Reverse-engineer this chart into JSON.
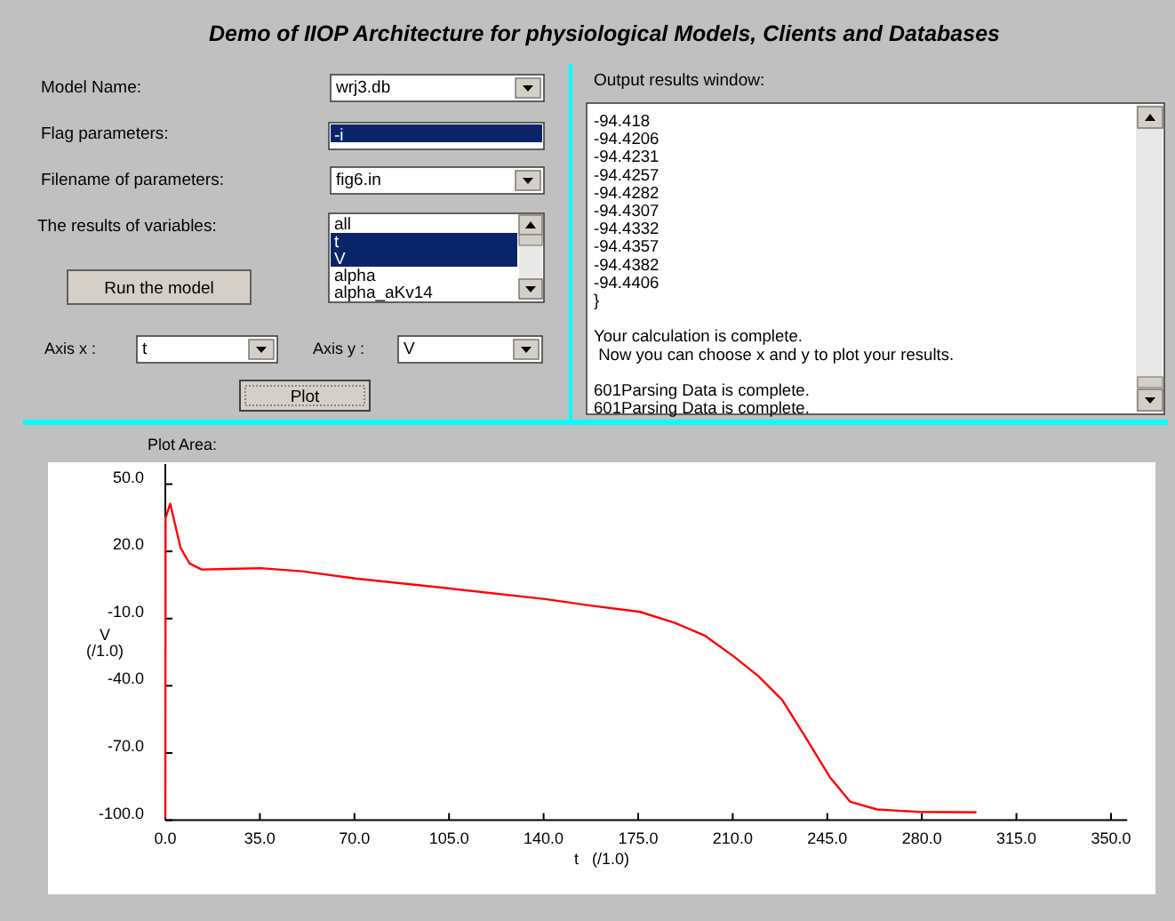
{
  "chart_data": {
    "type": "line",
    "title": "Demo of IIOP Architecture for physiological Models, Clients and Databases",
    "xlabel": "t   (/1.0)",
    "ylabel": "V\n(/1.0)",
    "xlim": [
      0,
      356
    ],
    "ylim": [
      -100,
      59
    ],
    "xticks": [
      {
        "value": 0,
        "label": "0.0"
      },
      {
        "value": 35,
        "label": "35.0"
      },
      {
        "value": 70,
        "label": "70.0"
      },
      {
        "value": 105,
        "label": "105.0"
      },
      {
        "value": 140,
        "label": "140.0"
      },
      {
        "value": 175,
        "label": "175.0"
      },
      {
        "value": 210,
        "label": "210.0"
      },
      {
        "value": 245,
        "label": "245.0"
      },
      {
        "value": 280,
        "label": "280.0"
      },
      {
        "value": 315,
        "label": "315.0"
      },
      {
        "value": 350,
        "label": "350.0"
      }
    ],
    "yticks": [
      {
        "value": 50,
        "label": "50.0"
      },
      {
        "value": 20,
        "label": "20.0"
      },
      {
        "value": -10,
        "label": "-10.0"
      },
      {
        "value": -40,
        "label": "-40.0"
      },
      {
        "value": -70,
        "label": "-70.0"
      },
      {
        "value": -100,
        "label": "-100.0"
      }
    ],
    "grid": false,
    "marker": "none",
    "line_style": "solid",
    "series": [
      {
        "color": "#ff0000",
        "x": [
          0,
          0.1,
          1.8,
          5.7,
          9,
          13.4,
          35.3,
          50.7,
          70.4,
          105.5,
          140.6,
          156,
          175.7,
          188.8,
          199.8,
          210.7,
          219.5,
          228.3,
          235.9,
          245.9,
          253.5,
          263.4,
          278.7,
          300.2
        ],
        "values": [
          -99,
          35,
          41.3,
          21.4,
          14.6,
          11.9,
          12.5,
          11.1,
          7.9,
          3.4,
          -1.3,
          -4,
          -7,
          -12,
          -17.7,
          -27.2,
          -35.7,
          -46.3,
          -60.9,
          -80.7,
          -91.8,
          -95.2,
          -96.3,
          -96.5
        ]
      }
    ],
    "annotations": [
      "Model Name:",
      "wrj3.db",
      "Flag parameters:",
      "-i",
      "Filename of parameters:",
      "fig6.in",
      "The results of variables:",
      "all",
      "t",
      "V",
      "alpha",
      "alpha_aKv14",
      "Run the model",
      "Axis x :",
      "t",
      "Axis y :",
      "V",
      "Plot",
      "Output results window:",
      "-94.418\n-94.4206\n-94.4231\n-94.4257\n-94.4282\n-94.4307\n-94.4332\n-94.4357\n-94.4382\n-94.4406\n}\n\nYour calculation is complete.\n Now you can choose x and y to plot your results.\n\n601Parsing Data is complete.\n601Parsing Data is complete.",
      "Plot Area:"
    ]
  }
}
